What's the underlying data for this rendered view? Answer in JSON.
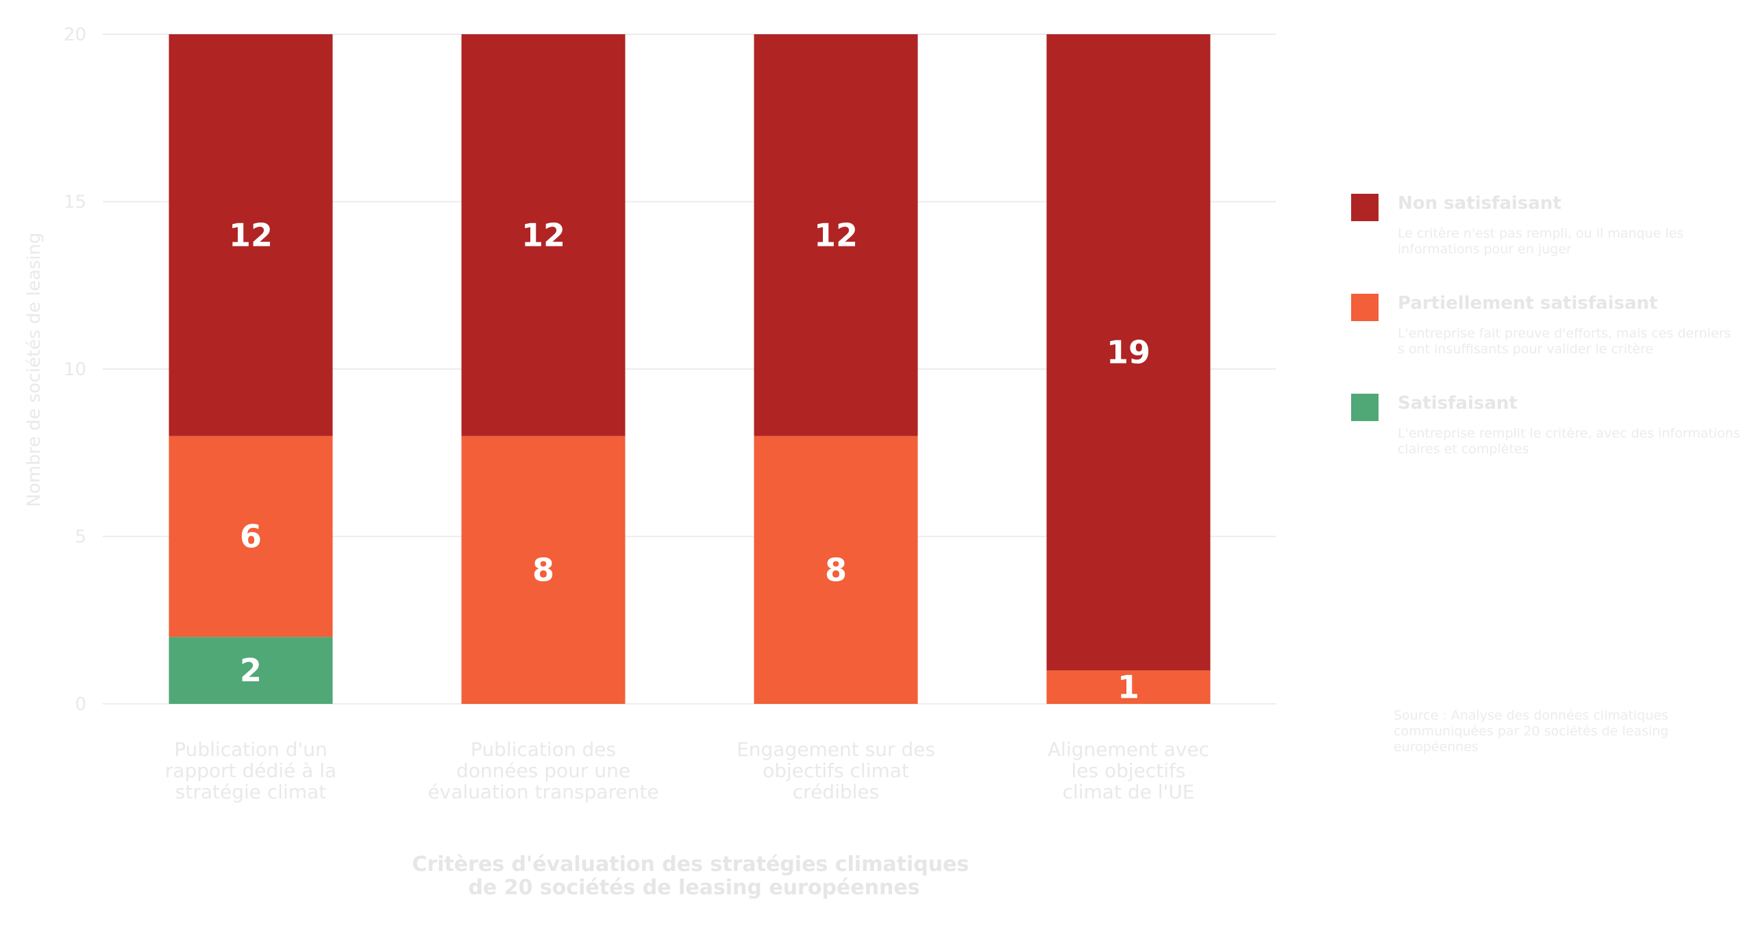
{
  "chart_data": {
    "type": "bar",
    "stacked": true,
    "categories": [
      [
        "Publication d'un",
        "rapport dédié à la",
        "stratégie climat"
      ],
      [
        "Publication des",
        "données pour une",
        "évaluation transparente"
      ],
      [
        "Engagement sur des",
        "objectifs climat",
        "crédibles"
      ],
      [
        "Alignement avec",
        "les objectifs",
        "climat de l'UE"
      ]
    ],
    "series": [
      {
        "name": "Satisfaisant",
        "color": "#4fa876",
        "values": [
          2,
          0,
          0,
          0
        ]
      },
      {
        "name": "Partiellement satisfaisant",
        "color": "#f25f38",
        "values": [
          6,
          8,
          8,
          1
        ]
      },
      {
        "name": "Non satisfaisant",
        "color": "#b02424",
        "values": [
          12,
          12,
          12,
          19
        ]
      }
    ],
    "ylabel": "Nombre de sociétés de leasing",
    "xlabel": [
      "Critères d'évaluation des stratégies climatiques",
      "de 20 sociétés de leasing européennes"
    ],
    "yticks": [
      0,
      5,
      10,
      15,
      20
    ],
    "ylim": [
      0,
      20
    ],
    "grid": true,
    "legend_position": "right"
  },
  "legend": [
    {
      "name": "Non satisfaisant",
      "color": "#b02424",
      "description": "Le critère n'est pas rempli, ou il manque les informations pour en juger"
    },
    {
      "name": "Partiellement satisfaisant",
      "color": "#f25f38",
      "description": "L'entreprise fait preuve d'efforts, mais ces derniers s ont insuffisants pour valider le critère"
    },
    {
      "name": "Satisfaisant",
      "color": "#4fa876",
      "description": "L'entreprise remplit le critère, avec des informations claires et complètes"
    }
  ],
  "source": "Source : Analyse des données climatiques communiquées par 20 sociétés de leasing européennes"
}
